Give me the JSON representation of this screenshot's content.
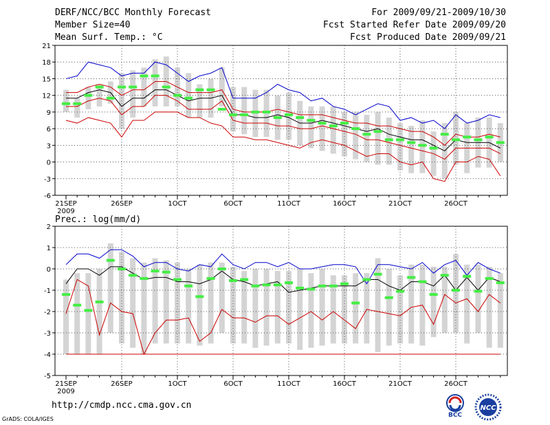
{
  "header": {
    "title": "DERF/NCC/BCC Monthly Forecast",
    "member_size": "Member Size=40",
    "variable_top": "Mean Surf. Temp.: °C",
    "period": "For 2009/09/21-2009/10/30",
    "started": "Fcst Started Refer Date 2009/09/20",
    "produced": "Fcst Produced Date 2009/09/21"
  },
  "footer": {
    "url": "http://cmdp.ncc.cma.gov.cn",
    "credit": "GrADS: COLA/IGES",
    "logo_left_text": "BCC",
    "logo_right_text": "NCC"
  },
  "colors": {
    "box": "#d4d4d4",
    "obs": "#44ee44",
    "max": "#0000cc",
    "min": "#cc0000",
    "mean": "#000000",
    "grid": "#555555"
  },
  "chart_data": [
    {
      "type": "line",
      "title": "Mean Surf. Temp.: °C",
      "ylim": [
        -6,
        21
      ],
      "yticks": [
        -6,
        -3,
        0,
        3,
        6,
        9,
        12,
        15,
        18,
        21
      ],
      "xticks": [
        {
          "day": 1,
          "label": "21SEP",
          "sub": "2009"
        },
        {
          "day": 6,
          "label": "26SEP",
          "sub": ""
        },
        {
          "day": 11,
          "label": "1OCT",
          "sub": ""
        },
        {
          "day": 16,
          "label": "6OCT",
          "sub": ""
        },
        {
          "day": 21,
          "label": "11OCT",
          "sub": ""
        },
        {
          "day": 26,
          "label": "16OCT",
          "sub": ""
        },
        {
          "day": 31,
          "label": "21OCT",
          "sub": ""
        },
        {
          "day": 36,
          "label": "26OCT",
          "sub": ""
        }
      ],
      "days": [
        1,
        2,
        3,
        4,
        5,
        6,
        7,
        8,
        9,
        10,
        11,
        12,
        13,
        14,
        15,
        16,
        17,
        18,
        19,
        20,
        21,
        22,
        23,
        24,
        25,
        26,
        27,
        28,
        29,
        30,
        31,
        32,
        33,
        34,
        35,
        36,
        37,
        38,
        39,
        40
      ],
      "box_high": [
        13,
        11.5,
        13.5,
        14,
        14.5,
        16,
        16.5,
        17,
        18.5,
        19,
        17,
        16,
        14,
        15,
        17,
        13.5,
        13.5,
        13,
        13,
        12,
        12.5,
        11,
        10,
        10,
        10,
        9,
        9,
        8.5,
        9,
        8,
        7,
        6.5,
        7.5,
        5.5,
        7,
        9,
        7,
        8,
        8,
        7
      ],
      "box_low": [
        9,
        8,
        9.5,
        10,
        10.5,
        6,
        8,
        10,
        10,
        10,
        10,
        8,
        8,
        8,
        10,
        5.5,
        5,
        4.5,
        4.5,
        4,
        4,
        3,
        2.5,
        2,
        1.5,
        1,
        0.5,
        0,
        -0.5,
        -0.5,
        -1.5,
        -2,
        -2,
        -2.5,
        -3,
        -0.5,
        -2,
        -1,
        -1,
        0
      ],
      "obs": [
        10.5,
        10.5,
        12,
        13.5,
        11.5,
        13.5,
        13.5,
        15.5,
        15.5,
        13.5,
        12,
        11.5,
        13,
        13,
        9.5,
        8.5,
        8.5,
        9,
        9,
        8,
        8.5,
        8,
        7.5,
        7,
        6.5,
        7,
        6,
        5,
        5.5,
        4,
        4,
        3.5,
        3,
        2.5,
        5,
        4,
        4.5,
        4,
        4.5,
        3.5
      ],
      "series": [
        {
          "name": "max",
          "values": [
            15,
            15.5,
            18,
            17.5,
            17,
            15.5,
            16,
            16,
            18,
            17.5,
            16,
            14.5,
            15.5,
            16,
            17,
            11.5,
            11.5,
            11.5,
            12.5,
            14,
            13,
            12.5,
            11,
            11.5,
            10,
            9.5,
            8.5,
            9.5,
            10.5,
            10,
            7.5,
            8,
            7,
            7.5,
            6,
            8.5,
            7,
            7.5,
            8.5,
            8
          ]
        },
        {
          "name": "upper",
          "values": [
            12.5,
            12.5,
            13.5,
            14,
            13.5,
            12,
            13,
            13,
            14.5,
            14.5,
            13.5,
            12.5,
            12.5,
            12.5,
            13,
            9.5,
            9,
            9,
            9,
            9.5,
            9,
            8.5,
            8.5,
            8.5,
            8,
            7.5,
            7,
            7,
            6.5,
            6.5,
            6,
            5.5,
            5.5,
            4.5,
            3,
            5,
            4.5,
            4.5,
            5,
            4.5
          ]
        },
        {
          "name": "mean",
          "values": [
            11.5,
            11.5,
            12.5,
            13,
            12.5,
            10,
            11.5,
            11.5,
            13,
            13,
            12,
            11,
            11.5,
            11.5,
            12,
            8.5,
            8.5,
            8,
            8,
            8.5,
            8,
            7,
            7,
            7.5,
            7,
            6.5,
            6,
            5.5,
            6,
            5,
            4.5,
            4,
            4,
            3,
            2,
            4,
            3.5,
            3.5,
            3.5,
            2.5
          ]
        },
        {
          "name": "lower",
          "values": [
            10,
            10,
            11,
            11.5,
            11,
            8.5,
            10,
            10,
            12,
            12,
            11,
            9.5,
            9.5,
            9.5,
            11,
            7.5,
            7,
            7,
            7,
            6.5,
            6.5,
            6,
            6,
            6.5,
            6,
            5.5,
            5,
            4,
            4,
            3.5,
            3,
            2.5,
            2,
            1.5,
            0.5,
            2.5,
            2.5,
            2.5,
            2.5,
            1.5
          ]
        },
        {
          "name": "min",
          "values": [
            7.5,
            7,
            8,
            7.5,
            7,
            4.5,
            7.5,
            7.5,
            9,
            9,
            9,
            8,
            8,
            7,
            6.5,
            4.5,
            4.5,
            4,
            4,
            3.5,
            3,
            2.5,
            3.5,
            4,
            3.5,
            3,
            2,
            1,
            1.5,
            1.5,
            0,
            -0.5,
            0,
            -3,
            -3.5,
            0,
            0,
            1,
            0.5,
            -2.5
          ]
        }
      ]
    },
    {
      "type": "line",
      "title": "Prec.: log(mm/d)",
      "ylim": [
        -5,
        2
      ],
      "yticks": [
        -5,
        -4,
        -3,
        -2,
        -1,
        0,
        1,
        2
      ],
      "xticks": [
        {
          "day": 1,
          "label": "21SEP",
          "sub": "2009"
        },
        {
          "day": 6,
          "label": "26SEP",
          "sub": ""
        },
        {
          "day": 11,
          "label": "1OCT",
          "sub": ""
        },
        {
          "day": 16,
          "label": "6OCT",
          "sub": ""
        },
        {
          "day": 21,
          "label": "11OCT",
          "sub": ""
        },
        {
          "day": 26,
          "label": "16OCT",
          "sub": ""
        },
        {
          "day": 31,
          "label": "21OCT",
          "sub": ""
        },
        {
          "day": 36,
          "label": "26OCT",
          "sub": ""
        }
      ],
      "days": [
        1,
        2,
        3,
        4,
        5,
        6,
        7,
        8,
        9,
        10,
        11,
        12,
        13,
        14,
        15,
        16,
        17,
        18,
        19,
        20,
        21,
        22,
        23,
        24,
        25,
        26,
        27,
        28,
        29,
        30,
        31,
        32,
        33,
        34,
        35,
        36,
        37,
        38,
        39,
        40
      ],
      "box_high": [
        -0.5,
        -0.2,
        -0.2,
        0,
        1.2,
        0.8,
        0.5,
        0.3,
        0.5,
        0.4,
        0.3,
        0,
        0.2,
        0.3,
        0.3,
        0.1,
        -0.1,
        0,
        0,
        -0.1,
        -0.1,
        0,
        -0.2,
        0,
        -0.3,
        -0.3,
        -0.2,
        -0.2,
        0.5,
        0,
        -0.3,
        0.2,
        0.2,
        0.1,
        0.1,
        0.7,
        0.2,
        0.2,
        0.1,
        -0.2
      ],
      "box_low": [
        -4,
        -4,
        -4,
        -4,
        -3,
        -3.5,
        -3.7,
        -4,
        -3.5,
        -3.5,
        -3.5,
        -3.5,
        -3.6,
        -3.5,
        -3,
        -3.5,
        -3.5,
        -3.7,
        -3.6,
        -3.5,
        -3.5,
        -3.8,
        -3.7,
        -3.6,
        -3.5,
        -3.5,
        -3.5,
        -3.5,
        -3.9,
        -3.6,
        -3.5,
        -3.5,
        -3.6,
        -3.2,
        -3,
        -3,
        -3.5,
        -3,
        -3.7,
        -3.7
      ],
      "obs": [
        -1.2,
        -1.7,
        -1.95,
        -1.55,
        0.4,
        0,
        -0.3,
        -0.45,
        -0.1,
        -0.15,
        -0.5,
        -0.8,
        -1.3,
        -0.45,
        0,
        -0.55,
        -0.5,
        -0.8,
        -0.75,
        -0.75,
        -0.65,
        -0.9,
        -0.95,
        -0.8,
        -0.8,
        -0.7,
        -1.6,
        -0.5,
        -0.25,
        -1.35,
        -1.05,
        -0.4,
        -0.6,
        -1.2,
        -0.3,
        -1,
        -0.35,
        -1.05,
        -0.45,
        -0.65
      ],
      "series": [
        {
          "name": "max",
          "values": [
            0.2,
            0.7,
            0.7,
            0.5,
            0.9,
            0.9,
            0.6,
            0.1,
            0.3,
            0.3,
            0,
            -0.1,
            0.2,
            0.1,
            0.7,
            0.2,
            0,
            0.3,
            0.3,
            0.1,
            0.3,
            0,
            0,
            0.1,
            0.2,
            0.2,
            0.1,
            -0.7,
            0.2,
            0.2,
            0.1,
            0,
            0.3,
            -0.2,
            0.2,
            0.4,
            -0.3,
            0.3,
            0,
            -0.2
          ]
        },
        {
          "name": "mean",
          "values": [
            -0.7,
            0,
            0,
            -0.3,
            0.1,
            0.1,
            -0.2,
            -0.5,
            -0.4,
            -0.4,
            -0.6,
            -0.6,
            -0.7,
            -0.5,
            -0.1,
            -0.5,
            -0.6,
            -0.8,
            -0.7,
            -0.6,
            -1.1,
            -1,
            -0.9,
            -0.8,
            -0.8,
            -0.8,
            -0.8,
            -0.5,
            -0.5,
            -0.8,
            -1,
            -0.6,
            -0.6,
            -0.8,
            -0.3,
            -1,
            -0.4,
            -1,
            -0.4,
            -0.6
          ]
        },
        {
          "name": "min",
          "values": [
            -2.1,
            -0.5,
            -0.8,
            -3.1,
            -1.6,
            -2,
            -2.1,
            -4,
            -3,
            -2.4,
            -2.4,
            -2.3,
            -3.4,
            -3,
            -1.9,
            -2.3,
            -2.3,
            -2.5,
            -2.2,
            -2.2,
            -2.6,
            -2.3,
            -2,
            -2.4,
            -2,
            -2.4,
            -2.8,
            -1.9,
            -2,
            -2.1,
            -2.2,
            -1.8,
            -1.7,
            -2.6,
            -1.2,
            -1.6,
            -1.4,
            -2,
            -1.2,
            -1.6
          ]
        },
        {
          "name": "floor",
          "values": [
            -4,
            -4,
            -4,
            -4,
            -4,
            -4,
            -4,
            -4,
            -4,
            -4,
            -4,
            -4,
            -4,
            -4,
            -4,
            -4,
            -4,
            -4,
            -4,
            -4,
            -4,
            -4,
            -4,
            -4,
            -4,
            -4,
            -4,
            -4,
            -4,
            -4,
            -4,
            -4,
            -4,
            -4,
            -4,
            -4,
            -4,
            -4,
            -4,
            -4
          ]
        }
      ]
    }
  ]
}
